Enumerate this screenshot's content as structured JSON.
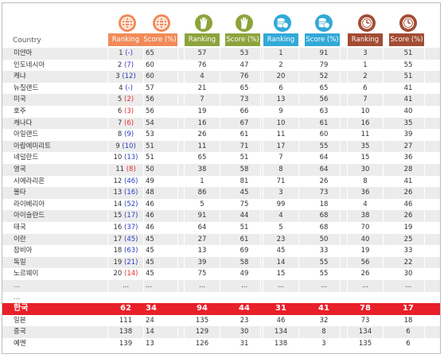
{
  "header": {
    "country_label": "Country",
    "groups": [
      {
        "icon": "globe-icon",
        "color": "#f28a58",
        "ranking_label": "Ranking",
        "score_label": "Score (%)"
      },
      {
        "icon": "hand-icon",
        "color": "#8ea33c",
        "ranking_label": "Ranking",
        "score_label": "Score (%)"
      },
      {
        "icon": "coins-icon",
        "color": "#31a9d8",
        "ranking_label": "Ranking",
        "score_label": "Score (%)"
      },
      {
        "icon": "clock-icon",
        "color": "#a24c33",
        "ranking_label": "Ranking",
        "score_label": "Score (%)"
      }
    ]
  },
  "colors": {
    "highlight": "#e8202a",
    "red_paren": "#e62e2e",
    "blue_paren": "#2d3fbf"
  },
  "chart_data": {
    "type": "table",
    "columns": [
      "Country",
      "Ranking",
      "Score (%)",
      "Ranking",
      "Score (%)",
      "Ranking",
      "Score (%)",
      "Ranking",
      "Score (%)"
    ],
    "rows": [
      {
        "country": "미얀마",
        "r1": "1",
        "p1": "(-)",
        "pc": "blue",
        "s1": "65",
        "r2": "57",
        "s2": "53",
        "r3": "1",
        "s3": "91",
        "r4": "3",
        "s4": "51"
      },
      {
        "country": "인도네시아",
        "r1": "2",
        "p1": "(7)",
        "pc": "blue",
        "s1": "60",
        "r2": "76",
        "s2": "47",
        "r3": "2",
        "s3": "79",
        "r4": "1",
        "s4": "55"
      },
      {
        "country": "케냐",
        "r1": "3",
        "p1": "(12)",
        "pc": "blue",
        "s1": "60",
        "r2": "4",
        "s2": "76",
        "r3": "20",
        "s3": "52",
        "r4": "2",
        "s4": "51"
      },
      {
        "country": "뉴질랜드",
        "r1": "4",
        "p1": "(-)",
        "pc": "blue",
        "s1": "57",
        "r2": "21",
        "s2": "65",
        "r3": "6",
        "s3": "65",
        "r4": "6",
        "s4": "41"
      },
      {
        "country": "미국",
        "r1": "5",
        "p1": "(2)",
        "pc": "red",
        "s1": "56",
        "r2": "7",
        "s2": "73",
        "r3": "13",
        "s3": "56",
        "r4": "7",
        "s4": "41"
      },
      {
        "country": "호주",
        "r1": "6",
        "p1": "(3)",
        "pc": "red",
        "s1": "56",
        "r2": "19",
        "s2": "66",
        "r3": "9",
        "s3": "63",
        "r4": "10",
        "s4": "40"
      },
      {
        "country": "캐나다",
        "r1": "7",
        "p1": "(6)",
        "pc": "red",
        "s1": "54",
        "r2": "16",
        "s2": "67",
        "r3": "10",
        "s3": "61",
        "r4": "16",
        "s4": "35"
      },
      {
        "country": "아일랜드",
        "r1": "8",
        "p1": "(9)",
        "pc": "blue",
        "s1": "53",
        "r2": "26",
        "s2": "61",
        "r3": "11",
        "s3": "60",
        "r4": "11",
        "s4": "39"
      },
      {
        "country": "아랍에미리트",
        "r1": "9",
        "p1": "(10)",
        "pc": "blue",
        "s1": "51",
        "r2": "11",
        "s2": "71",
        "r3": "17",
        "s3": "55",
        "r4": "35",
        "s4": "27"
      },
      {
        "country": "네덜란드",
        "r1": "10",
        "p1": "(13)",
        "pc": "blue",
        "s1": "51",
        "r2": "65",
        "s2": "51",
        "r3": "7",
        "s3": "64",
        "r4": "15",
        "s4": "36"
      },
      {
        "country": "영국",
        "r1": "11",
        "p1": "(8)",
        "pc": "red",
        "s1": "50",
        "r2": "38",
        "s2": "58",
        "r3": "8",
        "s3": "64",
        "r4": "30",
        "s4": "28"
      },
      {
        "country": "시에라리온",
        "r1": "12",
        "p1": "(46)",
        "pc": "blue",
        "s1": "49",
        "r2": "1",
        "s2": "81",
        "r3": "71",
        "s3": "26",
        "r4": "8",
        "s4": "41"
      },
      {
        "country": "몰타",
        "r1": "13",
        "p1": "(16)",
        "pc": "blue",
        "s1": "48",
        "r2": "86",
        "s2": "45",
        "r3": "3",
        "s3": "73",
        "r4": "36",
        "s4": "26"
      },
      {
        "country": "라이베리아",
        "r1": "14",
        "p1": "(52)",
        "pc": "blue",
        "s1": "46",
        "r2": "5",
        "s2": "75",
        "r3": "99",
        "s3": "18",
        "r4": "4",
        "s4": "46"
      },
      {
        "country": "아이슬란드",
        "r1": "15",
        "p1": "(17)",
        "pc": "blue",
        "s1": "46",
        "r2": "91",
        "s2": "44",
        "r3": "4",
        "s3": "68",
        "r4": "38",
        "s4": "26"
      },
      {
        "country": "태국",
        "r1": "16",
        "p1": "(37)",
        "pc": "blue",
        "s1": "46",
        "r2": "64",
        "s2": "51",
        "r3": "5",
        "s3": "68",
        "r4": "70",
        "s4": "19"
      },
      {
        "country": "이란",
        "r1": "17",
        "p1": "(45)",
        "pc": "blue",
        "s1": "45",
        "r2": "27",
        "s2": "61",
        "r3": "23",
        "s3": "50",
        "r4": "40",
        "s4": "25"
      },
      {
        "country": "잠비아",
        "r1": "18",
        "p1": "(63)",
        "pc": "blue",
        "s1": "45",
        "r2": "13",
        "s2": "69",
        "r3": "45",
        "s3": "33",
        "r4": "19",
        "s4": "33"
      },
      {
        "country": "독일",
        "r1": "19",
        "p1": "(21)",
        "pc": "blue",
        "s1": "45",
        "r2": "39",
        "s2": "58",
        "r3": "14",
        "s3": "55",
        "r4": "56",
        "s4": "22"
      },
      {
        "country": "노르웨이",
        "r1": "20",
        "p1": "(14)",
        "pc": "red",
        "s1": "45",
        "r2": "75",
        "s2": "49",
        "r3": "15",
        "s3": "55",
        "r4": "26",
        "s4": "30"
      },
      {
        "country": "...",
        "r1": "...",
        "p1": "",
        "pc": "",
        "s1": "...",
        "r2": "...",
        "s2": "...",
        "r3": "...",
        "s3": "...",
        "r4": "...",
        "s4": "..."
      },
      {
        "country": "...",
        "r1": "",
        "p1": "",
        "pc": "",
        "s1": "",
        "r2": "",
        "s2": "",
        "r3": "",
        "s3": "",
        "r4": "",
        "s4": ""
      },
      {
        "country": "한국",
        "highlight": true,
        "r1": "62",
        "p1": "",
        "pc": "",
        "s1": "34",
        "r2": "94",
        "s2": "44",
        "r3": "31",
        "s3": "41",
        "r4": "78",
        "s4": "17"
      },
      {
        "country": "일본",
        "r1": "111",
        "p1": "",
        "pc": "",
        "s1": "24",
        "r2": "135",
        "s2": "23",
        "r3": "46",
        "s3": "32",
        "r4": "73",
        "s4": "18"
      },
      {
        "country": "중국",
        "r1": "138",
        "p1": "",
        "pc": "",
        "s1": "14",
        "r2": "129",
        "s2": "30",
        "r3": "134",
        "s3": "8",
        "r4": "134",
        "s4": "6"
      },
      {
        "country": "예멘",
        "r1": "139",
        "p1": "",
        "pc": "",
        "s1": "13",
        "r2": "126",
        "s2": "31",
        "r3": "138",
        "s3": "3",
        "r4": "135",
        "s4": "6"
      }
    ]
  }
}
